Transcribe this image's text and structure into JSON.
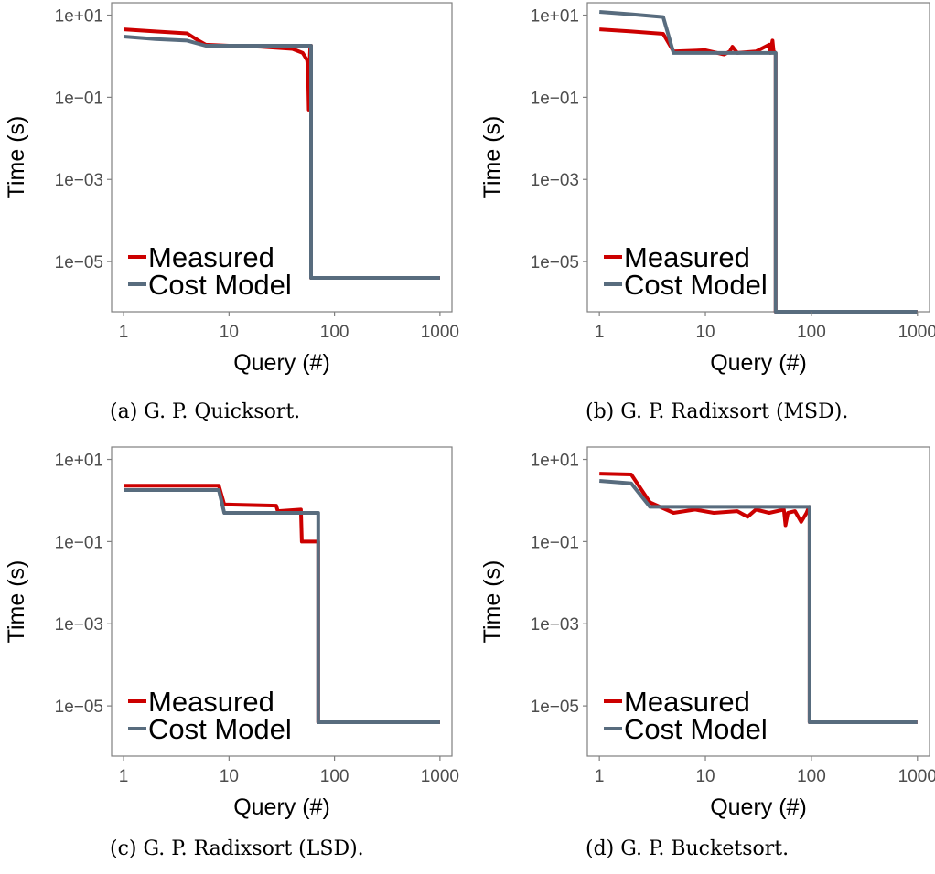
{
  "figure": {
    "captions": [
      "(a) G. P. Quicksort.",
      "(b) G. P. Radixsort (MSD).",
      "(c) G. P. Radixsort (LSD).",
      "(d) G. P. Bucketsort."
    ]
  },
  "chart_data": [
    {
      "type": "line",
      "caption": "(a) G. P. Quicksort.",
      "xlabel": "Query (#)",
      "ylabel": "Time (s)",
      "xscale": "log",
      "yscale": "log",
      "xticks": [
        1,
        10,
        100,
        1000
      ],
      "xticklabels": [
        "1",
        "10",
        "100",
        "1000"
      ],
      "yticks": [
        10,
        0.1,
        0.001,
        1e-05
      ],
      "yticklabels": [
        "1e+01",
        "1e−01",
        "1e−03",
        "1e−05"
      ],
      "xlim": [
        0.77,
        1300
      ],
      "ylim": [
        6e-07,
        20
      ],
      "legend_position": "bottom-left",
      "grid": false,
      "series": [
        {
          "name": "Measured",
          "color": "#cc0000",
          "x": [
            1,
            2,
            4,
            5,
            6,
            10,
            20,
            40,
            50,
            55,
            56,
            57,
            58,
            59,
            60,
            60,
            1000
          ],
          "y": [
            4.5,
            4.0,
            3.6,
            2.5,
            1.9,
            1.8,
            1.7,
            1.5,
            1.2,
            0.8,
            0.5,
            0.05,
            0.6,
            1.8,
            1.8,
            4e-06,
            4e-06
          ]
        },
        {
          "name": "Cost Model",
          "color": "#586c7e",
          "x": [
            1,
            2,
            4,
            6,
            10,
            60,
            60,
            1000
          ],
          "y": [
            3.0,
            2.6,
            2.4,
            1.8,
            1.8,
            1.8,
            4e-06,
            4e-06
          ]
        }
      ]
    },
    {
      "type": "line",
      "caption": "(b) G. P. Radixsort (MSD).",
      "xlabel": "Query (#)",
      "ylabel": "Time (s)",
      "xscale": "log",
      "yscale": "log",
      "xticks": [
        1,
        10,
        100,
        1000
      ],
      "xticklabels": [
        "1",
        "10",
        "100",
        "1000"
      ],
      "yticks": [
        10,
        0.1,
        0.001,
        1e-05
      ],
      "yticklabels": [
        "1e+01",
        "1e−01",
        "1e−03",
        "1e−05"
      ],
      "xlim": [
        0.77,
        1300
      ],
      "ylim": [
        6e-07,
        20
      ],
      "legend_position": "bottom-left",
      "grid": false,
      "series": [
        {
          "name": "Measured",
          "color": "#cc0000",
          "x": [
            1,
            2,
            4,
            5,
            10,
            15,
            17,
            18,
            20,
            30,
            40,
            41,
            43,
            44,
            46,
            46,
            1000
          ],
          "y": [
            4.5,
            4.0,
            3.5,
            1.3,
            1.4,
            1.1,
            1.3,
            1.7,
            1.2,
            1.3,
            1.9,
            1.2,
            2.4,
            1.3,
            1.2,
            6e-07,
            6e-07
          ]
        },
        {
          "name": "Cost Model",
          "color": "#586c7e",
          "x": [
            1,
            2,
            4,
            5,
            10,
            46,
            46,
            1000
          ],
          "y": [
            12,
            10.5,
            9,
            1.2,
            1.2,
            1.2,
            6e-07,
            6e-07
          ]
        }
      ]
    },
    {
      "type": "line",
      "caption": "(c) G. P. Radixsort (LSD).",
      "xlabel": "Query (#)",
      "ylabel": "Time (s)",
      "xscale": "log",
      "yscale": "log",
      "xticks": [
        1,
        10,
        100,
        1000
      ],
      "xticklabels": [
        "1",
        "10",
        "100",
        "1000"
      ],
      "yticks": [
        10,
        0.1,
        0.001,
        1e-05
      ],
      "yticklabels": [
        "1e+01",
        "1e−01",
        "1e−03",
        "1e−05"
      ],
      "xlim": [
        0.77,
        1300
      ],
      "ylim": [
        6e-07,
        20
      ],
      "legend_position": "bottom-left",
      "grid": false,
      "series": [
        {
          "name": "Measured",
          "color": "#cc0000",
          "x": [
            1,
            8,
            9,
            28,
            29,
            48,
            49,
            70,
            70,
            1000
          ],
          "y": [
            2.3,
            2.3,
            0.8,
            0.75,
            0.55,
            0.6,
            0.1,
            0.1,
            4e-06,
            4e-06
          ]
        },
        {
          "name": "Cost Model",
          "color": "#586c7e",
          "x": [
            1,
            8,
            9,
            70,
            70,
            1000
          ],
          "y": [
            1.8,
            1.8,
            0.5,
            0.5,
            4e-06,
            4e-06
          ]
        }
      ]
    },
    {
      "type": "line",
      "caption": "(d) G. P. Bucketsort.",
      "xlabel": "Query (#)",
      "ylabel": "Time (s)",
      "xscale": "log",
      "yscale": "log",
      "xticks": [
        1,
        10,
        100,
        1000
      ],
      "xticklabels": [
        "1",
        "10",
        "100",
        "1000"
      ],
      "yticks": [
        10,
        0.1,
        0.001,
        1e-05
      ],
      "yticklabels": [
        "1e+01",
        "1e−01",
        "1e−03",
        "1e−05"
      ],
      "xlim": [
        0.77,
        1300
      ],
      "ylim": [
        6e-07,
        20
      ],
      "legend_position": "bottom-left",
      "grid": false,
      "series": [
        {
          "name": "Measured",
          "color": "#cc0000",
          "x": [
            1,
            2,
            3,
            5,
            8,
            12,
            20,
            25,
            30,
            40,
            55,
            57,
            60,
            70,
            80,
            90,
            95,
            96,
            96,
            1000
          ],
          "y": [
            4.5,
            4.3,
            0.9,
            0.5,
            0.6,
            0.5,
            0.55,
            0.4,
            0.6,
            0.5,
            0.6,
            0.25,
            0.5,
            0.55,
            0.3,
            0.5,
            0.7,
            0.7,
            4e-06,
            4e-06
          ]
        },
        {
          "name": "Cost Model",
          "color": "#586c7e",
          "x": [
            1,
            2,
            3,
            96,
            96,
            1000
          ],
          "y": [
            3.0,
            2.6,
            0.7,
            0.7,
            4e-06,
            4e-06
          ]
        }
      ]
    }
  ]
}
